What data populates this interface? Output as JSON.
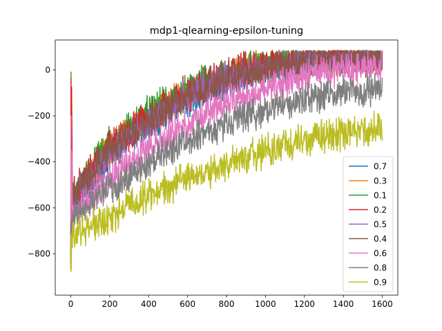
{
  "chart_data": {
    "type": "line",
    "title": "mdp1-qlearning-epsilon-tuning",
    "xlabel": "",
    "ylabel": "",
    "xlim": [
      -80,
      1680
    ],
    "ylim": [
      -980,
      130
    ],
    "xticks": [
      0,
      200,
      400,
      600,
      800,
      1000,
      1200,
      1400,
      1600
    ],
    "yticks": [
      -800,
      -600,
      -400,
      -200,
      0
    ],
    "grid": false,
    "legend_position": "lower-right",
    "series": [
      {
        "name": "0.7",
        "color": "#1f77b4",
        "noise": 110,
        "points": [
          [
            0,
            -820
          ],
          [
            5,
            -620
          ],
          [
            50,
            -560
          ],
          [
            100,
            -500
          ],
          [
            200,
            -380
          ],
          [
            300,
            -300
          ],
          [
            400,
            -240
          ],
          [
            500,
            -180
          ],
          [
            600,
            -130
          ],
          [
            700,
            -90
          ],
          [
            800,
            -50
          ],
          [
            900,
            -20
          ],
          [
            1000,
            5
          ],
          [
            1100,
            25
          ],
          [
            1200,
            40
          ],
          [
            1300,
            50
          ],
          [
            1400,
            55
          ],
          [
            1500,
            60
          ],
          [
            1600,
            60
          ]
        ]
      },
      {
        "name": "0.3",
        "color": "#ff7f0e",
        "noise": 110,
        "points": [
          [
            0,
            -820
          ],
          [
            5,
            -560
          ],
          [
            50,
            -500
          ],
          [
            100,
            -450
          ],
          [
            200,
            -340
          ],
          [
            300,
            -270
          ],
          [
            400,
            -210
          ],
          [
            500,
            -150
          ],
          [
            600,
            -100
          ],
          [
            700,
            -60
          ],
          [
            800,
            -25
          ],
          [
            900,
            0
          ],
          [
            1000,
            20
          ],
          [
            1100,
            35
          ],
          [
            1200,
            45
          ],
          [
            1300,
            50
          ],
          [
            1400,
            55
          ],
          [
            1500,
            60
          ],
          [
            1600,
            60
          ]
        ]
      },
      {
        "name": "0.1",
        "color": "#2ca02c",
        "noise": 120,
        "points": [
          [
            0,
            -820
          ],
          [
            3,
            -10
          ],
          [
            8,
            -560
          ],
          [
            50,
            -500
          ],
          [
            100,
            -440
          ],
          [
            200,
            -330
          ],
          [
            300,
            -260
          ],
          [
            400,
            -200
          ],
          [
            500,
            -140
          ],
          [
            600,
            -90
          ],
          [
            700,
            -50
          ],
          [
            800,
            -20
          ],
          [
            900,
            5
          ],
          [
            1000,
            25
          ],
          [
            1100,
            40
          ],
          [
            1200,
            50
          ],
          [
            1300,
            55
          ],
          [
            1400,
            60
          ],
          [
            1500,
            60
          ],
          [
            1600,
            60
          ]
        ]
      },
      {
        "name": "0.2",
        "color": "#d62728",
        "noise": 120,
        "points": [
          [
            0,
            -830
          ],
          [
            3,
            -40
          ],
          [
            8,
            -560
          ],
          [
            50,
            -510
          ],
          [
            100,
            -450
          ],
          [
            200,
            -340
          ],
          [
            300,
            -270
          ],
          [
            400,
            -210
          ],
          [
            500,
            -150
          ],
          [
            600,
            -100
          ],
          [
            700,
            -60
          ],
          [
            800,
            -25
          ],
          [
            900,
            0
          ],
          [
            1000,
            20
          ],
          [
            1100,
            35
          ],
          [
            1200,
            45
          ],
          [
            1300,
            50
          ],
          [
            1400,
            55
          ],
          [
            1500,
            55
          ],
          [
            1600,
            55
          ]
        ]
      },
      {
        "name": "0.5",
        "color": "#9467bd",
        "noise": 110,
        "points": [
          [
            0,
            -820
          ],
          [
            5,
            -570
          ],
          [
            50,
            -520
          ],
          [
            100,
            -470
          ],
          [
            200,
            -360
          ],
          [
            300,
            -290
          ],
          [
            400,
            -230
          ],
          [
            500,
            -170
          ],
          [
            600,
            -120
          ],
          [
            700,
            -80
          ],
          [
            800,
            -45
          ],
          [
            900,
            -15
          ],
          [
            1000,
            5
          ],
          [
            1100,
            20
          ],
          [
            1200,
            30
          ],
          [
            1300,
            40
          ],
          [
            1400,
            45
          ],
          [
            1500,
            50
          ],
          [
            1600,
            50
          ]
        ]
      },
      {
        "name": "0.4",
        "color": "#8c564b",
        "noise": 110,
        "points": [
          [
            0,
            -820
          ],
          [
            5,
            -570
          ],
          [
            50,
            -510
          ],
          [
            100,
            -460
          ],
          [
            200,
            -350
          ],
          [
            300,
            -280
          ],
          [
            400,
            -220
          ],
          [
            500,
            -160
          ],
          [
            600,
            -110
          ],
          [
            700,
            -70
          ],
          [
            800,
            -35
          ],
          [
            900,
            -10
          ],
          [
            1000,
            10
          ],
          [
            1100,
            25
          ],
          [
            1200,
            35
          ],
          [
            1300,
            45
          ],
          [
            1400,
            50
          ],
          [
            1500,
            55
          ],
          [
            1600,
            55
          ]
        ]
      },
      {
        "name": "0.6",
        "color": "#e377c2",
        "noise": 110,
        "points": [
          [
            0,
            -850
          ],
          [
            3,
            -200
          ],
          [
            8,
            -640
          ],
          [
            50,
            -600
          ],
          [
            100,
            -560
          ],
          [
            200,
            -480
          ],
          [
            300,
            -410
          ],
          [
            400,
            -350
          ],
          [
            500,
            -290
          ],
          [
            600,
            -240
          ],
          [
            700,
            -190
          ],
          [
            800,
            -150
          ],
          [
            900,
            -110
          ],
          [
            1000,
            -80
          ],
          [
            1100,
            -50
          ],
          [
            1200,
            -30
          ],
          [
            1300,
            -10
          ],
          [
            1400,
            0
          ],
          [
            1500,
            10
          ],
          [
            1600,
            15
          ]
        ]
      },
      {
        "name": "0.8",
        "color": "#7f7f7f",
        "noise": 100,
        "points": [
          [
            0,
            -860
          ],
          [
            5,
            -660
          ],
          [
            50,
            -620
          ],
          [
            100,
            -590
          ],
          [
            200,
            -520
          ],
          [
            300,
            -460
          ],
          [
            400,
            -400
          ],
          [
            500,
            -350
          ],
          [
            600,
            -310
          ],
          [
            700,
            -270
          ],
          [
            800,
            -230
          ],
          [
            900,
            -200
          ],
          [
            1000,
            -175
          ],
          [
            1100,
            -150
          ],
          [
            1200,
            -130
          ],
          [
            1300,
            -110
          ],
          [
            1400,
            -100
          ],
          [
            1500,
            -90
          ],
          [
            1600,
            -85
          ]
        ]
      },
      {
        "name": "0.9",
        "color": "#bcbd22",
        "noise": 110,
        "points": [
          [
            0,
            -880
          ],
          [
            5,
            -720
          ],
          [
            50,
            -700
          ],
          [
            100,
            -680
          ],
          [
            200,
            -640
          ],
          [
            300,
            -590
          ],
          [
            400,
            -550
          ],
          [
            500,
            -510
          ],
          [
            600,
            -470
          ],
          [
            700,
            -440
          ],
          [
            800,
            -410
          ],
          [
            900,
            -380
          ],
          [
            1000,
            -355
          ],
          [
            1100,
            -330
          ],
          [
            1200,
            -310
          ],
          [
            1300,
            -295
          ],
          [
            1400,
            -280
          ],
          [
            1500,
            -265
          ],
          [
            1600,
            -255
          ]
        ]
      }
    ]
  }
}
